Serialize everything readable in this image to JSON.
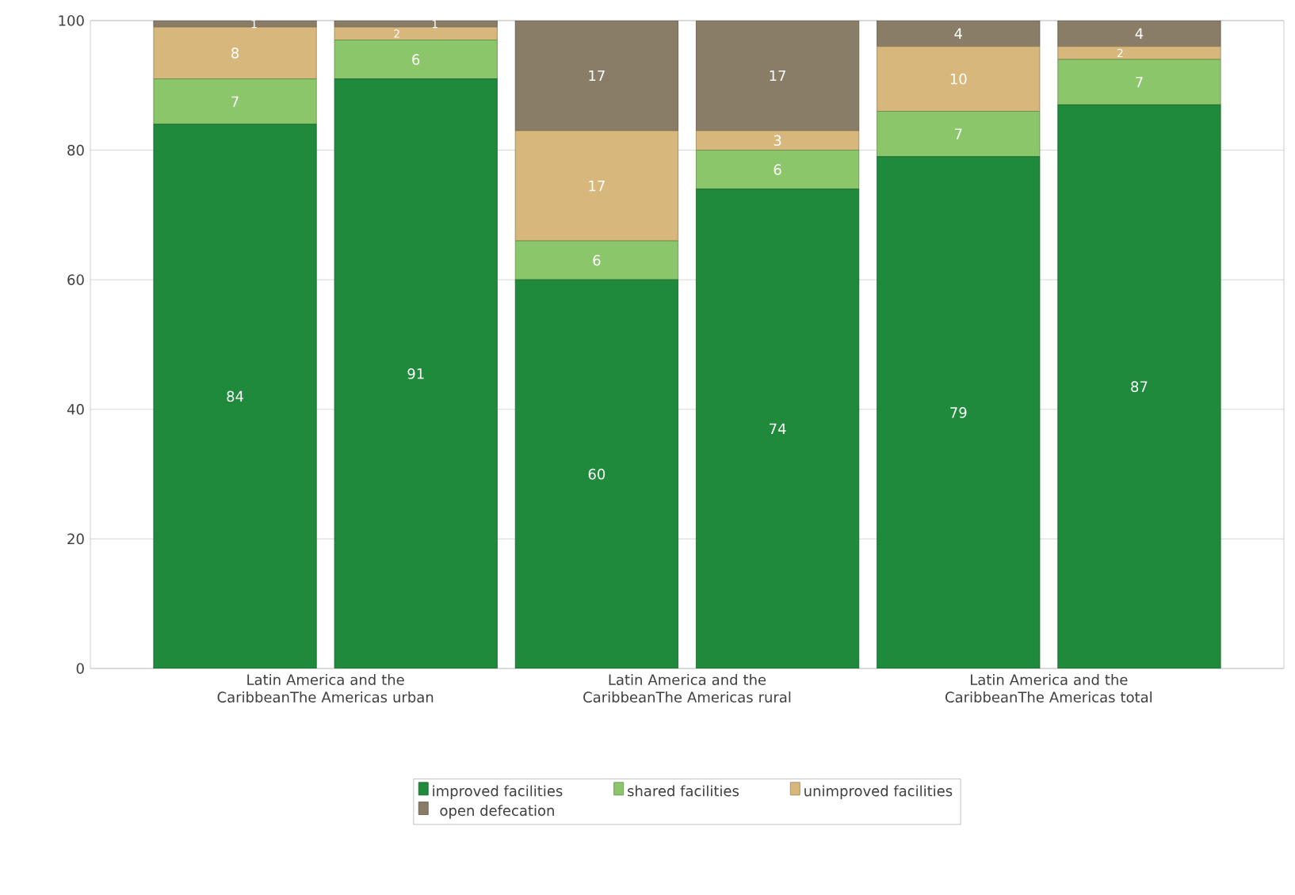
{
  "chart_data": {
    "type": "bar",
    "stacked": true,
    "categories": [
      "Latin America and the CaribbeanThe Americas urban",
      null,
      "Latin America and the CaribbeanThe Americas rural",
      null,
      "Latin America and the CaribbeanThe Americas total",
      null
    ],
    "series": [
      {
        "name": "improved facilities",
        "color": "#1f8a3c",
        "values": [
          84,
          91,
          60,
          74,
          79,
          87
        ]
      },
      {
        "name": "shared facilities",
        "color": "#8cc66a",
        "values": [
          7,
          6,
          6,
          6,
          7,
          7
        ]
      },
      {
        "name": "unimproved facilities",
        "color": "#d8b77c",
        "values": [
          8,
          2,
          17,
          3,
          10,
          2
        ]
      },
      {
        "name": "open defecation",
        "color": "#8a7d68",
        "values": [
          1,
          1,
          17,
          17,
          4,
          4
        ]
      }
    ],
    "ylim": [
      0,
      100
    ],
    "yticks": [
      0,
      20,
      40,
      60,
      80,
      100
    ],
    "grid": "y",
    "legend": "bottom",
    "data_labels": true
  }
}
